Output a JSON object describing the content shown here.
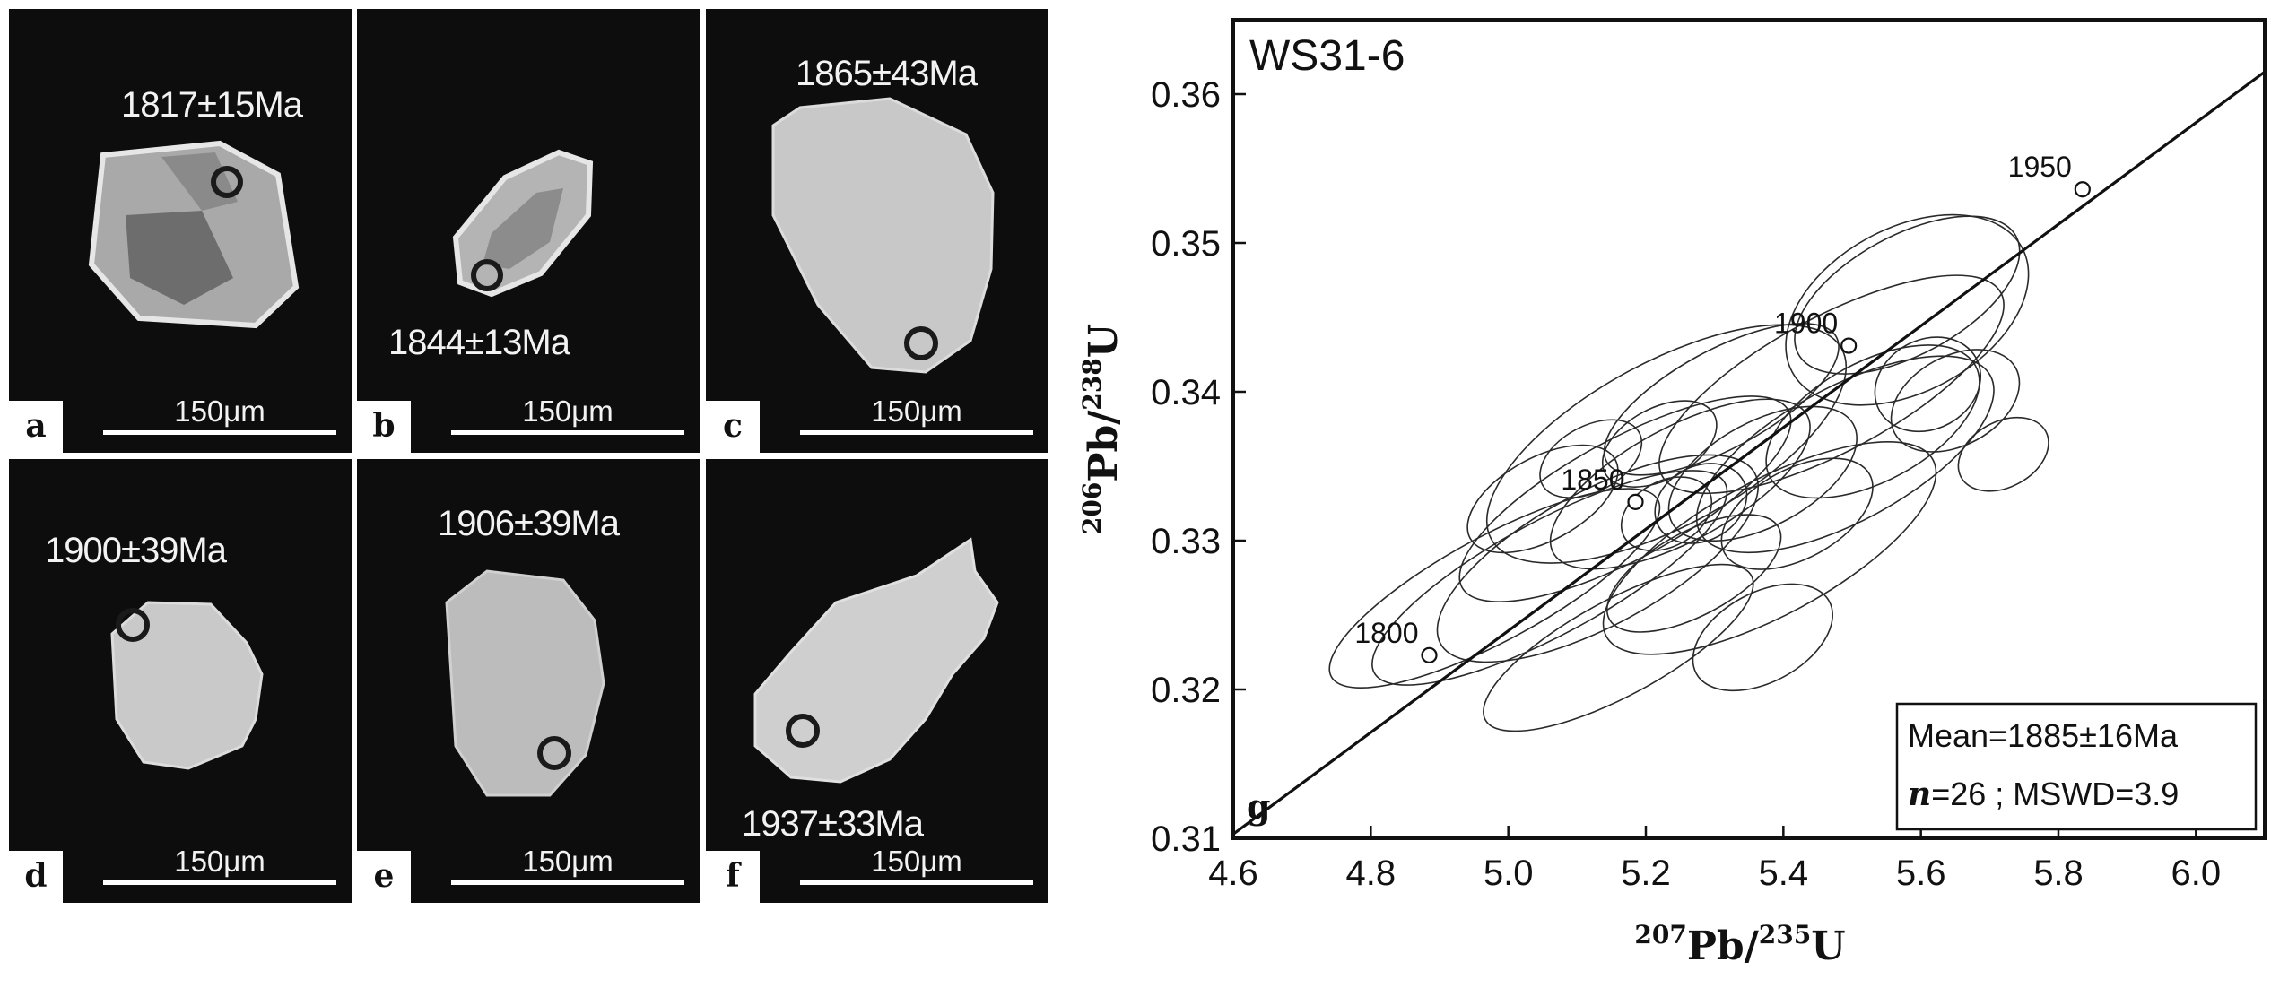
{
  "panels": [
    {
      "id": "a",
      "age": "1817±15Ma",
      "scale": "150μm"
    },
    {
      "id": "b",
      "age": "1844±13Ma",
      "scale": "150μm"
    },
    {
      "id": "c",
      "age": "1865±43Ma",
      "scale": "150μm"
    },
    {
      "id": "d",
      "age": "1900±39Ma",
      "scale": "150μm"
    },
    {
      "id": "e",
      "age": "1906±39Ma",
      "scale": "150μm"
    },
    {
      "id": "f",
      "age": "1937±33Ma",
      "scale": "150μm"
    }
  ],
  "chart_data": {
    "type": "scatter",
    "subtype": "concordia",
    "title": "WS31-6",
    "panel_label": "g",
    "xlabel_mass": "207",
    "xlabel_rest": "Pb/",
    "xlabel_mass2": "235",
    "xlabel_tail": "U",
    "ylabel_mass": "206",
    "ylabel_rest": "Pb/",
    "ylabel_mass2": "238",
    "ylabel_tail": "U",
    "xlim": [
      4.6,
      6.1
    ],
    "ylim": [
      0.31,
      0.365
    ],
    "xticks": [
      4.6,
      4.8,
      5.0,
      5.2,
      5.4,
      5.6,
      5.8,
      6.0
    ],
    "xtick_labels": [
      "4.6",
      "4.8",
      "5.0",
      "5.2",
      "5.4",
      "5.6",
      "5.8",
      "6.0"
    ],
    "yticks": [
      0.31,
      0.32,
      0.33,
      0.34,
      0.35,
      0.36
    ],
    "ytick_labels": [
      "0.31",
      "0.32",
      "0.33",
      "0.34",
      "0.35",
      "0.36"
    ],
    "concordia_line": [
      [
        4.58,
        0.3096
      ],
      [
        6.1,
        0.3615
      ]
    ],
    "age_markers": [
      {
        "label": "1800",
        "x": 4.885,
        "y": 0.3223
      },
      {
        "label": "1850",
        "x": 5.185,
        "y": 0.3326
      },
      {
        "label": "1900",
        "x": 5.495,
        "y": 0.3431
      },
      {
        "label": "1950",
        "x": 5.835,
        "y": 0.3536
      }
    ],
    "error_ellipses": [
      {
        "cx": 5.58,
        "cy": 0.3455,
        "rx": 0.19,
        "ry": 0.0055
      },
      {
        "cx": 5.47,
        "cy": 0.3405,
        "rx": 0.28,
        "ry": 0.0045
      },
      {
        "cx": 5.23,
        "cy": 0.3365,
        "rx": 0.29,
        "ry": 0.0055
      },
      {
        "cx": 5.31,
        "cy": 0.3395,
        "rx": 0.19,
        "ry": 0.0033
      },
      {
        "cx": 5.49,
        "cy": 0.3358,
        "rx": 0.24,
        "ry": 0.0045
      },
      {
        "cx": 5.25,
        "cy": 0.3338,
        "rx": 0.21,
        "ry": 0.0038
      },
      {
        "cx": 5.13,
        "cy": 0.3288,
        "rx": 0.26,
        "ry": 0.0045
      },
      {
        "cx": 5.38,
        "cy": 0.3295,
        "rx": 0.27,
        "ry": 0.0045
      },
      {
        "cx": 5.06,
        "cy": 0.3275,
        "rx": 0.29,
        "ry": 0.0038
      },
      {
        "cx": 4.98,
        "cy": 0.3268,
        "rx": 0.27,
        "ry": 0.0035
      },
      {
        "cx": 5.16,
        "cy": 0.3228,
        "rx": 0.22,
        "ry": 0.0032
      },
      {
        "cx": 5.27,
        "cy": 0.3278,
        "rx": 0.14,
        "ry": 0.0028
      },
      {
        "cx": 5.37,
        "cy": 0.3235,
        "rx": 0.11,
        "ry": 0.003
      },
      {
        "cx": 5.42,
        "cy": 0.3318,
        "rx": 0.12,
        "ry": 0.003
      },
      {
        "cx": 5.22,
        "cy": 0.3365,
        "rx": 0.09,
        "ry": 0.0024
      },
      {
        "cx": 5.28,
        "cy": 0.3325,
        "rx": 0.07,
        "ry": 0.0025
      },
      {
        "cx": 5.61,
        "cy": 0.3405,
        "rx": 0.08,
        "ry": 0.003
      },
      {
        "cx": 5.65,
        "cy": 0.3394,
        "rx": 0.1,
        "ry": 0.003
      },
      {
        "cx": 5.72,
        "cy": 0.3358,
        "rx": 0.07,
        "ry": 0.0022
      },
      {
        "cx": 5.58,
        "cy": 0.3465,
        "rx": 0.18,
        "ry": 0.004
      },
      {
        "cx": 5.12,
        "cy": 0.3355,
        "rx": 0.08,
        "ry": 0.0022
      },
      {
        "cx": 5.23,
        "cy": 0.3318,
        "rx": 0.07,
        "ry": 0.0022
      },
      {
        "cx": 5.17,
        "cy": 0.3328,
        "rx": 0.27,
        "ry": 0.004
      },
      {
        "cx": 5.53,
        "cy": 0.338,
        "rx": 0.17,
        "ry": 0.004
      },
      {
        "cx": 5.37,
        "cy": 0.3345,
        "rx": 0.15,
        "ry": 0.0035
      },
      {
        "cx": 5.05,
        "cy": 0.3328,
        "rx": 0.12,
        "ry": 0.0028
      }
    ],
    "stats_line1": "Mean=1885±16Ma",
    "stats_n": "n",
    "stats_line2": "=26 ; MSWD=3.9"
  }
}
